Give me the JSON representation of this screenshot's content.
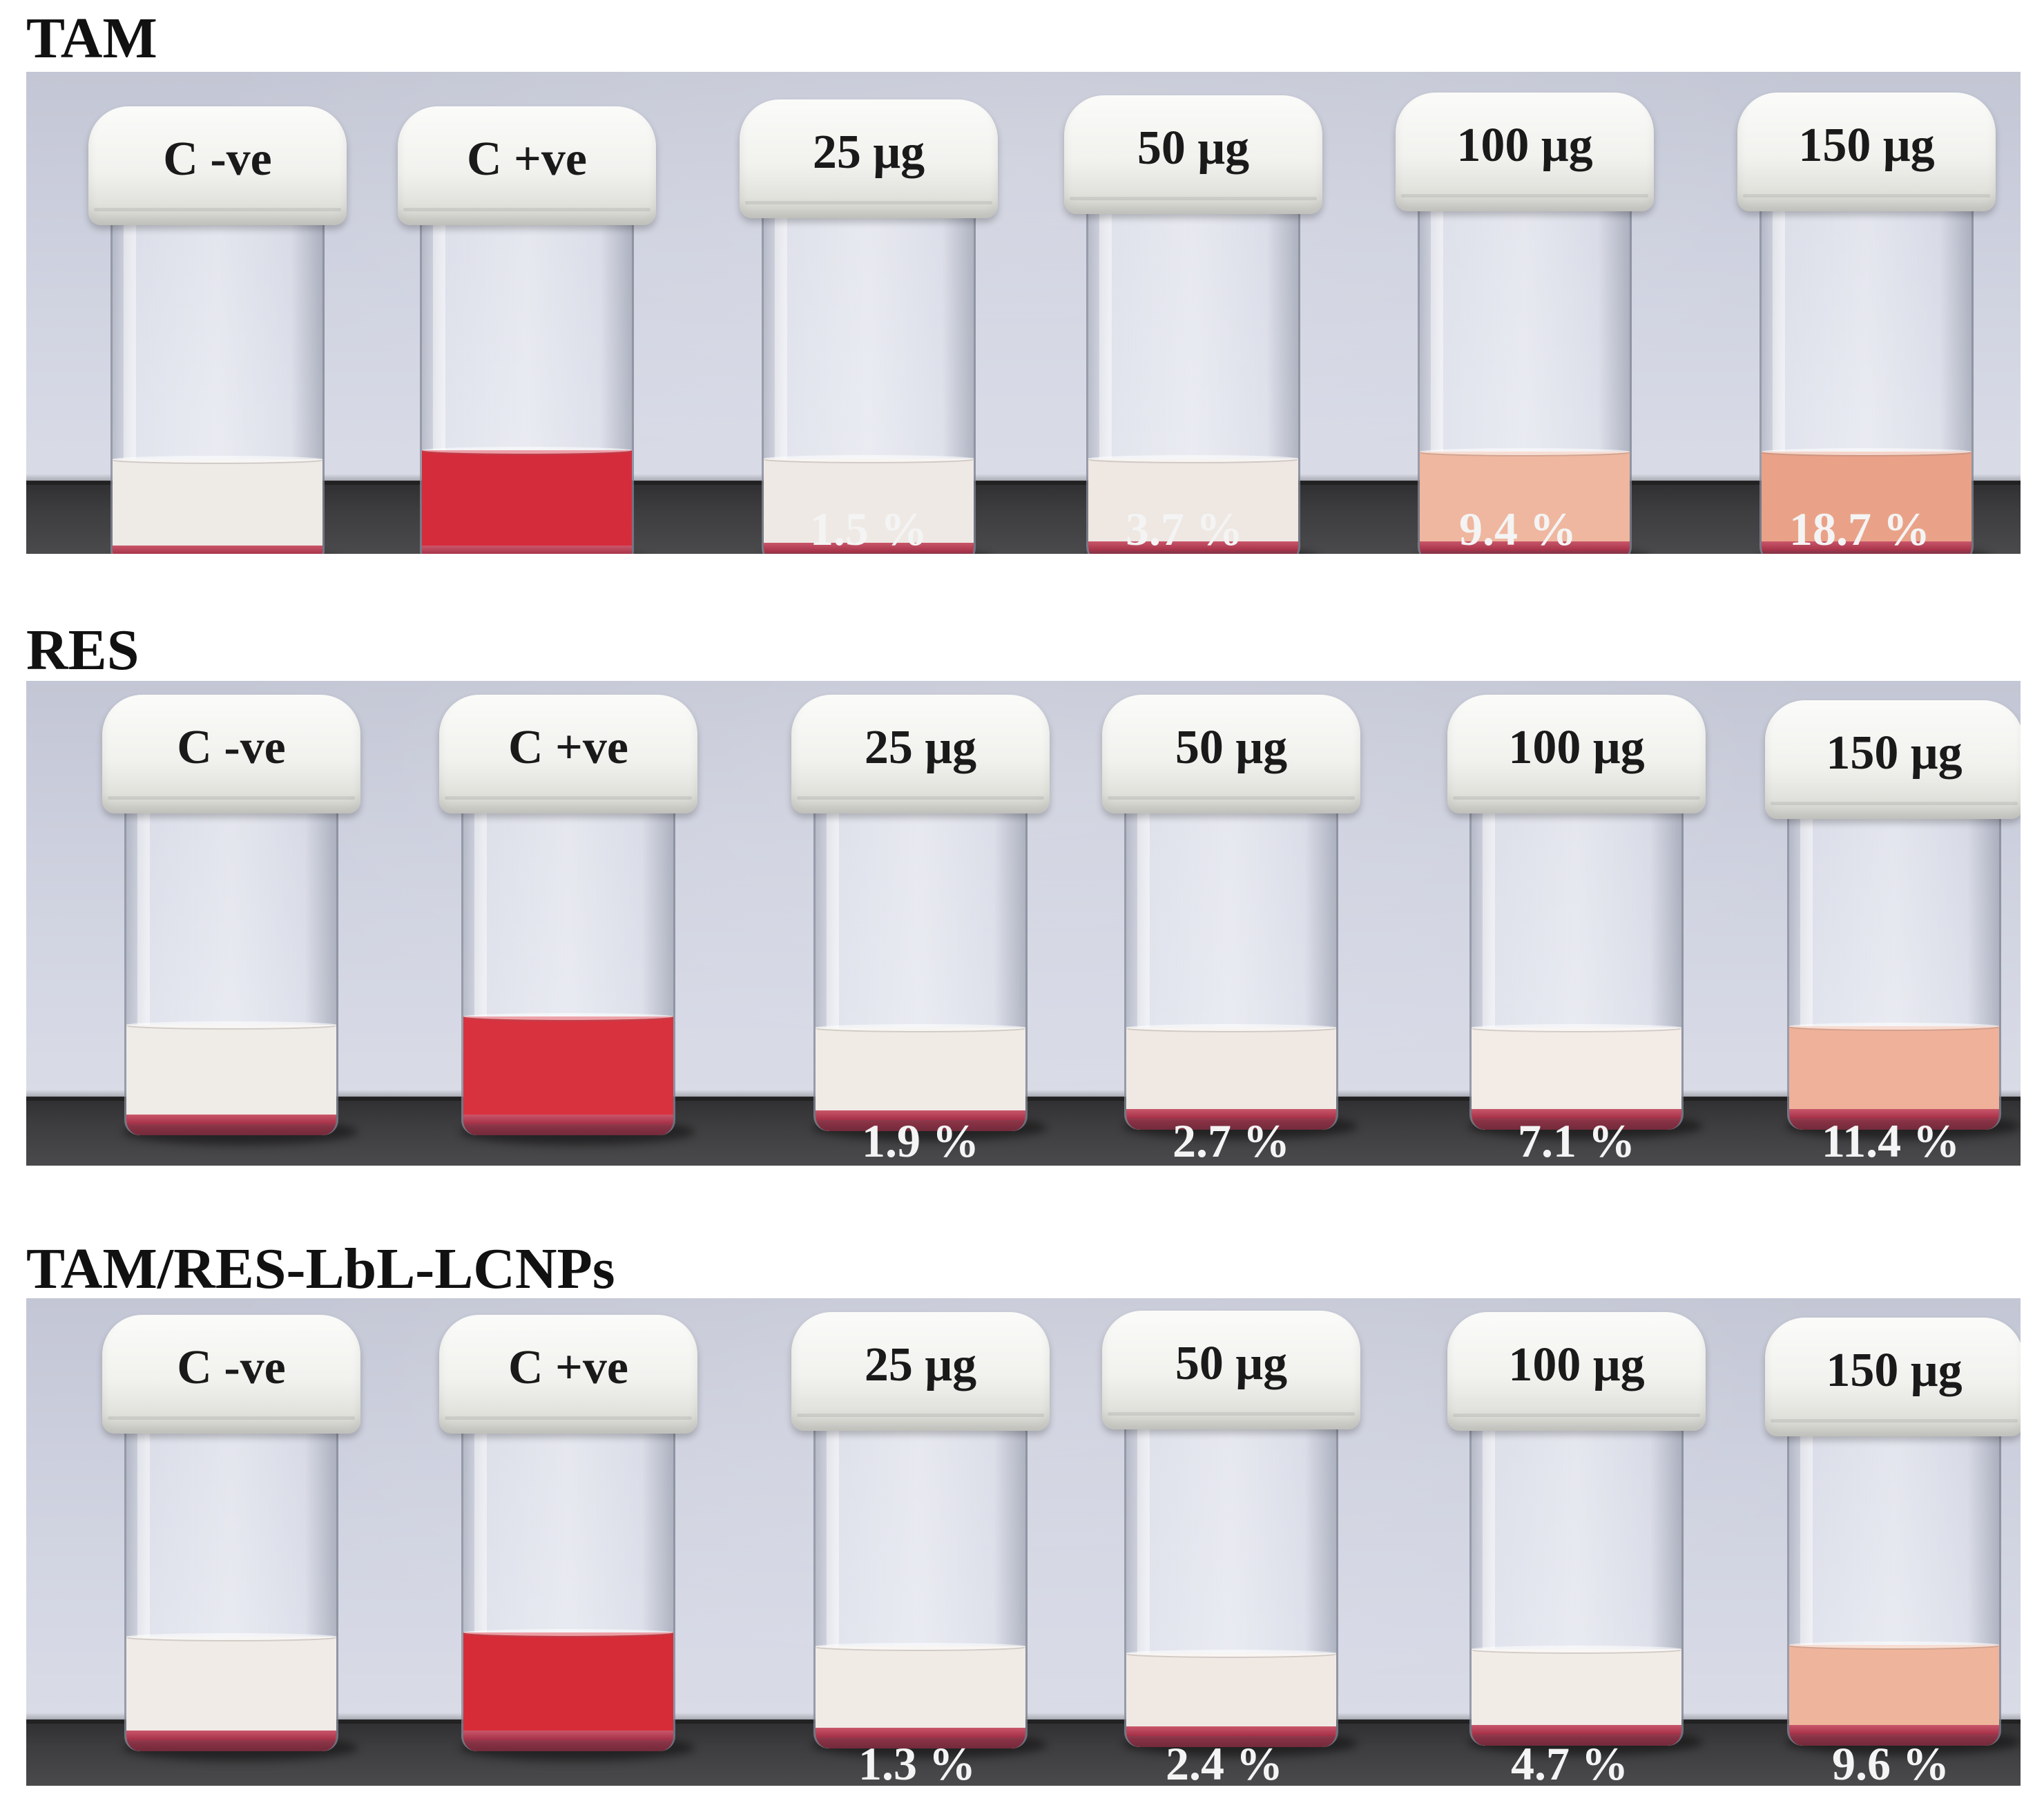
{
  "panels": [
    {
      "title": "TAM",
      "vials": [
        {
          "label": "C -ve",
          "percent": "",
          "liquid_color": "#eeeae6"
        },
        {
          "label": "C +ve",
          "percent": "",
          "liquid_color": "#d52c3c"
        },
        {
          "label": "25 μg",
          "percent": "1.5 %",
          "liquid_color": "#efe9e5"
        },
        {
          "label": "50 μg",
          "percent": "3.7 %",
          "liquid_color": "#eee7e2"
        },
        {
          "label": "100 μg",
          "percent": "9.4 %",
          "liquid_color": "#efb79f"
        },
        {
          "label": "150 μg",
          "percent": "18.7 %",
          "liquid_color": "#e9a288"
        }
      ]
    },
    {
      "title": "RES",
      "vials": [
        {
          "label": "C -ve",
          "percent": "",
          "liquid_color": "#efebe6"
        },
        {
          "label": "C +ve",
          "percent": "",
          "liquid_color": "#d8323f"
        },
        {
          "label": "25 μg",
          "percent": "1.9 %",
          "liquid_color": "#f0ebe5"
        },
        {
          "label": "50 μg",
          "percent": "2.7 %",
          "liquid_color": "#f0e9e3"
        },
        {
          "label": "100 μg",
          "percent": "7.1 %",
          "liquid_color": "#f2ebe6"
        },
        {
          "label": "150 μg",
          "percent": "11.4 %",
          "liquid_color": "#efb199"
        }
      ]
    },
    {
      "title": "TAM/RES-LbL-LCNPs",
      "vials": [
        {
          "label": "C -ve",
          "percent": "",
          "liquid_color": "#f0ebe6"
        },
        {
          "label": "C +ve",
          "percent": "",
          "liquid_color": "#d62c38"
        },
        {
          "label": "25 μg",
          "percent": "1.3 %",
          "liquid_color": "#f1ebe5"
        },
        {
          "label": "50 μg",
          "percent": "2.4 %",
          "liquid_color": "#f0e9e3"
        },
        {
          "label": "100 μg",
          "percent": "4.7 %",
          "liquid_color": "#f2ece7"
        },
        {
          "label": "150 μg",
          "percent": "9.6 %",
          "liquid_color": "#efb59c"
        }
      ]
    }
  ]
}
